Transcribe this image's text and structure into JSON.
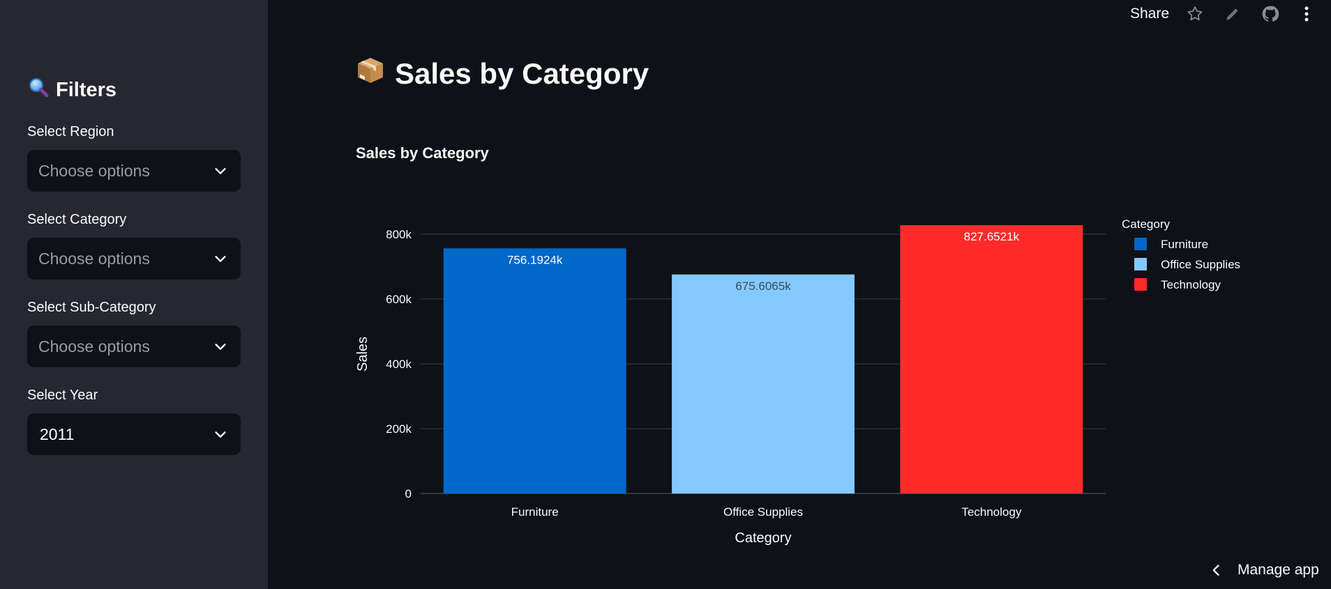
{
  "toolbar": {
    "share_label": "Share",
    "icons": [
      "star-icon",
      "edit-icon",
      "github-icon",
      "more-vertical-icon"
    ]
  },
  "sidebar": {
    "title": "Filters",
    "title_icon": "magnifying-glass-icon",
    "filters": [
      {
        "label": "Select Region",
        "value": "Choose options",
        "placeholder": true
      },
      {
        "label": "Select Category",
        "value": "Choose options",
        "placeholder": true
      },
      {
        "label": "Select Sub-Category",
        "value": "Choose options",
        "placeholder": true
      },
      {
        "label": "Select Year",
        "value": "2011",
        "placeholder": false
      }
    ]
  },
  "main": {
    "title": "Sales by Category",
    "title_icon": "package-icon",
    "chart_title": "Sales by Category"
  },
  "footer": {
    "manage_label": "Manage app"
  },
  "colors": {
    "background": "#0e1117",
    "sidebar": "#262730",
    "furniture": "#0068c9",
    "office_supplies": "#83c9ff",
    "technology": "#ff2b2b"
  },
  "chart_data": {
    "type": "bar",
    "categories": [
      "Furniture",
      "Office Supplies",
      "Technology"
    ],
    "values": [
      756192.4,
      675606.5,
      827652.1
    ],
    "value_labels": [
      "756.1924k",
      "675.6065k",
      "827.6521k"
    ],
    "colors": [
      "#0068c9",
      "#83c9ff",
      "#ff2b2b"
    ],
    "xlabel": "Category",
    "ylabel": "Sales",
    "ylim": [
      0,
      860000
    ],
    "yticks": [
      0,
      200000,
      400000,
      600000,
      800000
    ],
    "ytick_labels": [
      "0",
      "200k",
      "400k",
      "600k",
      "800k"
    ],
    "legend_title": "Category",
    "legend_position": "top-right",
    "grid": true
  }
}
